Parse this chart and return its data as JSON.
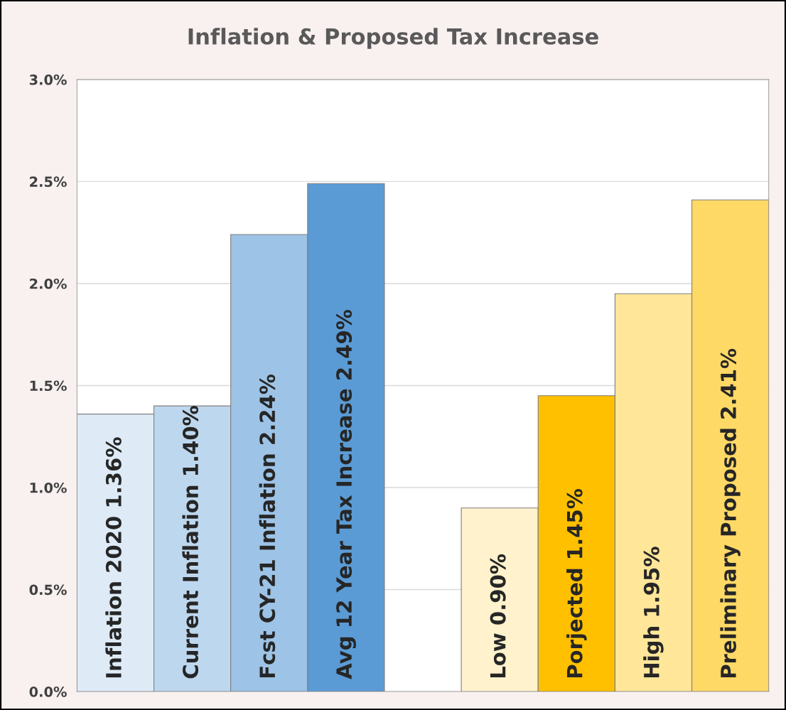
{
  "chart_data": {
    "type": "bar",
    "title": "Inflation & Proposed Tax Increase",
    "categories": [
      "Inflation 2020 1.36%",
      "Current Inflation 1.40%",
      "Fcst CY-21 Inflation 2.24%",
      "Avg 12 Year Tax Increase 2.49%",
      null,
      "Low 0.90%",
      "Porjected 1.45%",
      "High 1.95%",
      "Preliminary Proposed 2.41%"
    ],
    "values": [
      1.36,
      1.4,
      2.24,
      2.49,
      null,
      0.9,
      1.45,
      1.95,
      2.41
    ],
    "colors": [
      "#deebf7",
      "#bdd7ee",
      "#9dc3e6",
      "#5b9bd5",
      "#ffffff",
      "#fff2cc",
      "#ffc000",
      "#ffe699",
      "#ffd966"
    ],
    "ylim": [
      0,
      3
    ],
    "yticks": [
      {
        "value": 0,
        "label": "0.0%"
      },
      {
        "value": 0.5,
        "label": "0.5%"
      },
      {
        "value": 1,
        "label": "1.0%"
      },
      {
        "value": 1.5,
        "label": "1.5%"
      },
      {
        "value": 2,
        "label": "2.0%"
      },
      {
        "value": 2.5,
        "label": "2.5%"
      },
      {
        "value": 3,
        "label": "3.0%"
      }
    ],
    "grid": "y"
  }
}
